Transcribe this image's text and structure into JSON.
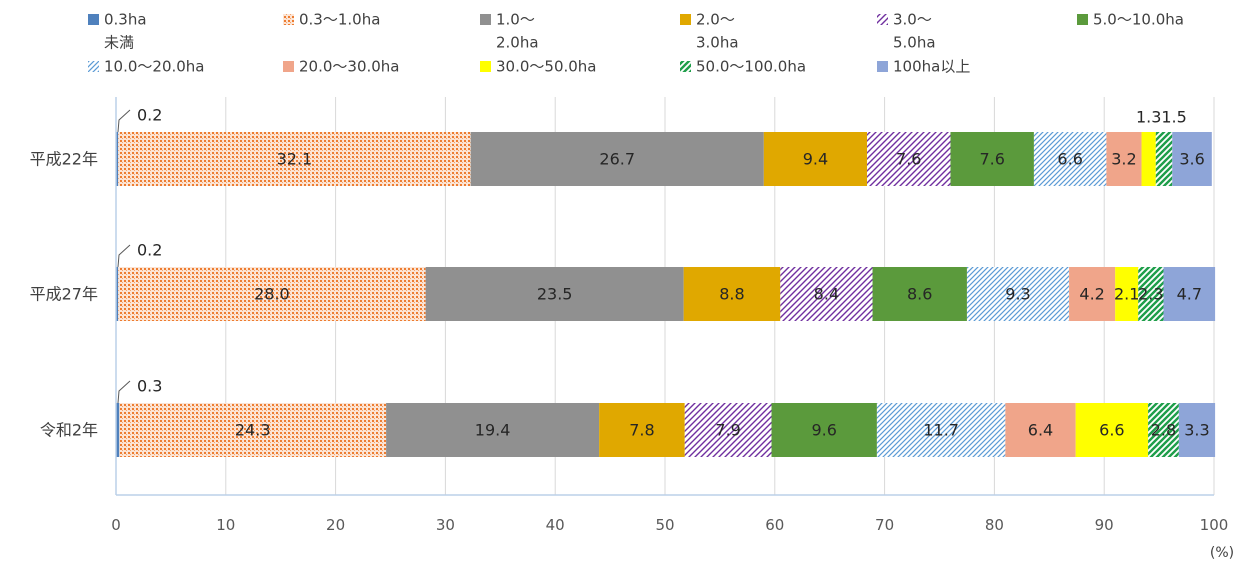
{
  "chart_data": {
    "type": "bar",
    "orientation": "horizontal",
    "stacked": true,
    "categories": [
      "平成22年",
      "平成27年",
      "令和2年"
    ],
    "series": [
      {
        "name": "0.3ha未満",
        "legend_lines": [
          "0.3ha",
          "未満"
        ],
        "color": "#4f81bd",
        "pattern": "solid",
        "values": [
          0.2,
          0.2,
          0.3
        ]
      },
      {
        "name": "0.3～1.0ha",
        "legend_lines": [
          "0.3～1.0ha"
        ],
        "color": "#ed7d31",
        "pattern": "dots",
        "values": [
          32.1,
          28.0,
          24.3
        ]
      },
      {
        "name": "1.0～2.0ha",
        "legend_lines": [
          "1.0～",
          "2.0ha"
        ],
        "color": "#909090",
        "pattern": "solid",
        "values": [
          26.7,
          23.5,
          19.4
        ]
      },
      {
        "name": "2.0～3.0ha",
        "legend_lines": [
          "2.0～",
          "3.0ha"
        ],
        "color": "#e0a800",
        "pattern": "solid",
        "values": [
          9.4,
          8.8,
          7.8
        ]
      },
      {
        "name": "3.0～5.0ha",
        "legend_lines": [
          "3.0～",
          "5.0ha"
        ],
        "color": "#7030a0",
        "pattern": "diag",
        "values": [
          7.6,
          8.4,
          7.9
        ]
      },
      {
        "name": "5.0～10.0ha",
        "legend_lines": [
          "5.0～10.0ha"
        ],
        "color": "#5b9a3c",
        "pattern": "solid",
        "values": [
          7.6,
          8.6,
          9.6
        ]
      },
      {
        "name": "10.0～20.0ha",
        "legend_lines": [
          "10.0～20.0ha"
        ],
        "color": "#5b9bd5",
        "pattern": "hatch",
        "values": [
          6.6,
          9.3,
          11.7
        ]
      },
      {
        "name": "20.0～30.0ha",
        "legend_lines": [
          "20.0～30.0ha"
        ],
        "color": "#f0a58a",
        "pattern": "solid",
        "values": [
          3.2,
          4.2,
          6.4
        ]
      },
      {
        "name": "30.0～50.0ha",
        "legend_lines": [
          "30.0～50.0ha"
        ],
        "color": "#ffff00",
        "pattern": "solid",
        "values": [
          1.3,
          2.1,
          6.6
        ]
      },
      {
        "name": "50.0～100.0ha",
        "legend_lines": [
          "50.0～100.0ha"
        ],
        "color": "#1e9e4a",
        "pattern": "zigzag",
        "values": [
          1.5,
          2.3,
          2.8
        ]
      },
      {
        "name": "100ha以上",
        "legend_lines": [
          "100ha以上"
        ],
        "color": "#8ea5d8",
        "pattern": "solid",
        "values": [
          3.6,
          4.7,
          3.3
        ]
      }
    ],
    "xlim": [
      0,
      100
    ],
    "xticks": [
      0,
      10,
      20,
      30,
      40,
      50,
      60,
      70,
      80,
      90,
      100
    ],
    "xunit": "(%)",
    "legend": "top",
    "grid": true
  }
}
